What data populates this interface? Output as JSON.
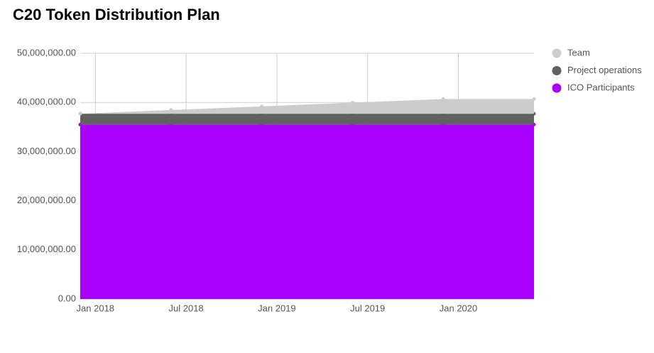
{
  "chart_data": {
    "type": "stacked-area",
    "title": "C20 Token Distribution Plan",
    "x": [
      "2017-12",
      "2018-06",
      "2018-12",
      "2019-06",
      "2019-12",
      "2020-06"
    ],
    "xlim": [
      "2017-12",
      "2020-06"
    ],
    "xticks": [
      {
        "value": "2018-01",
        "label": "Jan 2018"
      },
      {
        "value": "2018-07",
        "label": "Jul 2018"
      },
      {
        "value": "2019-01",
        "label": "Jan 2019"
      },
      {
        "value": "2019-07",
        "label": "Jul 2019"
      },
      {
        "value": "2020-01",
        "label": "Jan 2020"
      }
    ],
    "ylim": [
      0,
      50000000
    ],
    "yticks": [
      {
        "value": 0,
        "label": "0.00"
      },
      {
        "value": 10000000,
        "label": "10,000,000.00"
      },
      {
        "value": 20000000,
        "label": "20,000,000.00"
      },
      {
        "value": 30000000,
        "label": "30,000,000.00"
      },
      {
        "value": 40000000,
        "label": "40,000,000.00"
      },
      {
        "value": 50000000,
        "label": "50,000,000.00"
      }
    ],
    "grid": true,
    "legend": "top-right",
    "series": [
      {
        "name": "ICO Participants",
        "color": "#aa00ff",
        "values": [
          35500000,
          35500000,
          35500000,
          35500000,
          35500000,
          35500000
        ]
      },
      {
        "name": "Project operations",
        "color": "#616161",
        "values": [
          2200000,
          2200000,
          2200000,
          2200000,
          2200000,
          2200000
        ]
      },
      {
        "name": "Team",
        "color": "#cccccc",
        "values": [
          0,
          750000,
          1500000,
          2250000,
          3000000,
          3000000
        ]
      }
    ]
  }
}
